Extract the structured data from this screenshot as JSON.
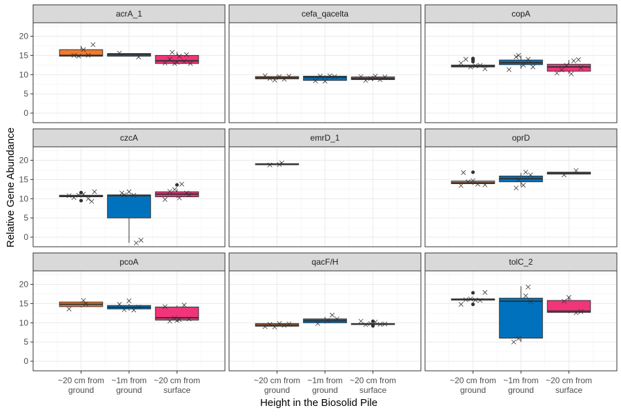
{
  "chart_data": {
    "type": "boxplot",
    "xlabel": "Height in the Biosolid Pile",
    "ylabel": "Relative Gene Abundance",
    "ylim": [
      -2.5,
      23.5
    ],
    "yticks": [
      0,
      5,
      10,
      15,
      20
    ],
    "grid": true,
    "legend": "none",
    "categories": [
      {
        "line1": "~20 cm from",
        "line2": "ground"
      },
      {
        "line1": "~1m from",
        "line2": "ground"
      },
      {
        "line1": "~20 cm from",
        "line2": "surface"
      }
    ],
    "colors": [
      "#F07A2E",
      "#0072BD",
      "#F0357A"
    ],
    "panels": [
      {
        "name": "acrA_1",
        "boxes": [
          {
            "q1": 14.8,
            "median": 15.0,
            "q3": 16.5,
            "lo": 14.8,
            "hi": 17.5,
            "outliers": [],
            "points": [
              [
                -0.15,
                15.0
              ],
              [
                0.05,
                16.5
              ],
              [
                0.15,
                15.0
              ],
              [
                0.25,
                17.8
              ],
              [
                -0.05,
                14.8
              ]
            ]
          },
          {
            "q1": 14.8,
            "median": 15.2,
            "q3": 15.5,
            "lo": 14.8,
            "hi": 15.5,
            "outliers": [],
            "points": [
              [
                -0.2,
                15.6
              ],
              [
                0.2,
                14.6
              ]
            ]
          },
          {
            "q1": 12.9,
            "median": 13.6,
            "q3": 15.0,
            "lo": 12.9,
            "hi": 15.9,
            "outliers": [],
            "points": [
              [
                -0.25,
                13.0
              ],
              [
                -0.15,
                14.0
              ],
              [
                -0.1,
                15.8
              ],
              [
                0.0,
                13.2
              ],
              [
                0.05,
                14.8
              ],
              [
                0.15,
                13.4
              ],
              [
                0.2,
                15.2
              ],
              [
                0.28,
                12.9
              ],
              [
                -0.05,
                12.9
              ]
            ]
          }
        ]
      },
      {
        "name": "cefa_qacelta",
        "boxes": [
          {
            "q1": 8.9,
            "median": 9.2,
            "q3": 9.5,
            "lo": 8.6,
            "hi": 9.8,
            "outliers": [],
            "points": [
              [
                -0.25,
                9.7
              ],
              [
                -0.15,
                9.0
              ],
              [
                -0.05,
                8.6
              ],
              [
                0.05,
                9.5
              ],
              [
                0.15,
                8.8
              ],
              [
                0.25,
                9.6
              ]
            ]
          },
          {
            "q1": 8.5,
            "median": 9.3,
            "q3": 9.6,
            "lo": 8.3,
            "hi": 9.8,
            "outliers": [],
            "points": [
              [
                -0.2,
                8.4
              ],
              [
                -0.1,
                9.6
              ],
              [
                0.0,
                8.3
              ],
              [
                0.1,
                9.7
              ],
              [
                0.2,
                9.5
              ]
            ]
          },
          {
            "q1": 8.7,
            "median": 9.0,
            "q3": 9.4,
            "lo": 8.4,
            "hi": 9.7,
            "outliers": [],
            "points": [
              [
                -0.25,
                9.5
              ],
              [
                -0.15,
                8.5
              ],
              [
                -0.05,
                9.0
              ],
              [
                0.05,
                9.6
              ],
              [
                0.15,
                8.7
              ],
              [
                0.25,
                9.4
              ]
            ]
          }
        ]
      },
      {
        "name": "copA",
        "boxes": [
          {
            "q1": 12.0,
            "median": 12.2,
            "q3": 12.5,
            "lo": 12.0,
            "hi": 12.5,
            "outliers": [
              13.4,
              13.9,
              14.2
            ],
            "points": [
              [
                -0.25,
                13.0
              ],
              [
                -0.15,
                14.0
              ],
              [
                -0.05,
                12.0
              ],
              [
                0.05,
                12.3
              ],
              [
                0.15,
                12.4
              ],
              [
                0.25,
                11.5
              ]
            ]
          },
          {
            "q1": 12.6,
            "median": 13.1,
            "q3": 13.8,
            "lo": 11.5,
            "hi": 15.0,
            "outliers": [],
            "points": [
              [
                -0.25,
                11.3
              ],
              [
                -0.1,
                14.6
              ],
              [
                -0.05,
                15.0
              ],
              [
                0.05,
                12.5
              ],
              [
                0.15,
                14.0
              ],
              [
                0.25,
                12.0
              ]
            ]
          },
          {
            "q1": 10.9,
            "median": 12.0,
            "q3": 12.7,
            "lo": 10.2,
            "hi": 13.8,
            "outliers": [],
            "points": [
              [
                -0.25,
                10.4
              ],
              [
                -0.15,
                11.2
              ],
              [
                -0.05,
                12.4
              ],
              [
                0.05,
                10.2
              ],
              [
                0.1,
                13.6
              ],
              [
                0.2,
                13.9
              ],
              [
                0.25,
                11.8
              ]
            ]
          }
        ]
      },
      {
        "name": "czcA",
        "boxes": [
          {
            "q1": 10.5,
            "median": 10.7,
            "q3": 10.9,
            "lo": 10.5,
            "hi": 10.9,
            "outliers": [
              9.5,
              11.6
            ],
            "points": [
              [
                -0.25,
                10.8
              ],
              [
                -0.15,
                10.3
              ],
              [
                -0.05,
                10.9
              ],
              [
                0.05,
                11.2
              ],
              [
                0.15,
                10.0
              ],
              [
                0.22,
                9.3
              ],
              [
                0.28,
                11.8
              ]
            ]
          },
          {
            "q1": 5.0,
            "median": 10.8,
            "q3": 11.0,
            "lo": -1.5,
            "hi": 11.0,
            "outliers": [],
            "points": [
              [
                -0.1,
                11.0
              ],
              [
                0.0,
                11.8
              ],
              [
                0.1,
                10.9
              ],
              [
                0.15,
                -1.5
              ],
              [
                0.25,
                -0.8
              ],
              [
                -0.15,
                11.5
              ]
            ]
          },
          {
            "q1": 10.5,
            "median": 11.2,
            "q3": 11.8,
            "lo": 10.2,
            "hi": 12.5,
            "outliers": [
              13.6
            ],
            "points": [
              [
                -0.25,
                9.8
              ],
              [
                -0.15,
                11.9
              ],
              [
                -0.05,
                12.4
              ],
              [
                0.05,
                10.2
              ],
              [
                0.1,
                13.8
              ],
              [
                0.2,
                11.5
              ],
              [
                0.25,
                11.0
              ]
            ]
          }
        ]
      },
      {
        "name": "emrD_1",
        "boxes": [
          {
            "q1": 18.9,
            "median": 19.0,
            "q3": 19.1,
            "lo": 18.9,
            "hi": 19.1,
            "outliers": [],
            "points": [
              [
                -0.15,
                18.8
              ],
              [
                0.1,
                19.3
              ],
              [
                0.05,
                18.9
              ]
            ]
          },
          null,
          null
        ]
      },
      {
        "name": "oprD",
        "boxes": [
          {
            "q1": 13.9,
            "median": 14.1,
            "q3": 14.6,
            "lo": 13.6,
            "hi": 14.8,
            "outliers": [
              16.9
            ],
            "points": [
              [
                -0.25,
                13.4
              ],
              [
                -0.2,
                16.8
              ],
              [
                -0.1,
                14.4
              ],
              [
                0.0,
                14.7
              ],
              [
                0.1,
                13.8
              ],
              [
                0.25,
                13.6
              ]
            ]
          },
          {
            "q1": 14.4,
            "median": 15.2,
            "q3": 15.9,
            "lo": 13.2,
            "hi": 16.7,
            "outliers": [],
            "points": [
              [
                -0.1,
                12.8
              ],
              [
                -0.05,
                14.9
              ],
              [
                0.05,
                13.5
              ],
              [
                0.1,
                16.9
              ],
              [
                0.2,
                16.2
              ]
            ]
          },
          {
            "q1": 16.4,
            "median": 16.7,
            "q3": 16.9,
            "lo": 16.4,
            "hi": 16.9,
            "outliers": [],
            "points": [
              [
                -0.1,
                16.2
              ],
              [
                0.15,
                17.3
              ]
            ]
          }
        ]
      },
      {
        "name": "pcoA",
        "boxes": [
          {
            "q1": 14.2,
            "median": 14.8,
            "q3": 15.4,
            "lo": 14.0,
            "hi": 15.5,
            "outliers": [],
            "points": [
              [
                -0.25,
                13.6
              ],
              [
                0.05,
                15.8
              ],
              [
                0.1,
                14.9
              ]
            ]
          },
          {
            "q1": 13.6,
            "median": 14.0,
            "q3": 14.5,
            "lo": 13.2,
            "hi": 14.9,
            "outliers": [],
            "points": [
              [
                -0.2,
                14.8
              ],
              [
                -0.1,
                13.4
              ],
              [
                0.0,
                15.7
              ],
              [
                0.1,
                13.3
              ],
              [
                0.2,
                14.1
              ]
            ]
          },
          {
            "q1": 10.7,
            "median": 11.3,
            "q3": 14.1,
            "lo": 10.3,
            "hi": 14.5,
            "outliers": [],
            "points": [
              [
                -0.25,
                14.2
              ],
              [
                -0.15,
                10.4
              ],
              [
                -0.05,
                11.2
              ],
              [
                0.05,
                10.8
              ],
              [
                0.15,
                14.6
              ],
              [
                0.25,
                11.0
              ],
              [
                0.0,
                10.6
              ]
            ]
          }
        ]
      },
      {
        "name": "qacF/H",
        "boxes": [
          {
            "q1": 9.1,
            "median": 9.4,
            "q3": 9.8,
            "lo": 8.9,
            "hi": 9.9,
            "outliers": [],
            "points": [
              [
                -0.25,
                9.0
              ],
              [
                -0.15,
                9.6
              ],
              [
                -0.05,
                8.9
              ],
              [
                0.05,
                9.8
              ],
              [
                0.15,
                9.3
              ],
              [
                0.25,
                9.7
              ]
            ]
          },
          {
            "q1": 10.0,
            "median": 10.5,
            "q3": 11.0,
            "lo": 9.8,
            "hi": 11.5,
            "outliers": [],
            "points": [
              [
                -0.15,
                9.8
              ],
              [
                0.05,
                10.6
              ],
              [
                0.15,
                12.0
              ],
              [
                0.25,
                11.0
              ]
            ]
          },
          {
            "q1": 9.6,
            "median": 9.7,
            "q3": 9.8,
            "lo": 9.4,
            "hi": 10.2,
            "outliers": [
              9.2,
              10.4
            ],
            "points": [
              [
                -0.25,
                10.4
              ],
              [
                -0.15,
                9.5
              ],
              [
                -0.05,
                9.8
              ],
              [
                0.05,
                10.2
              ],
              [
                0.15,
                9.6
              ],
              [
                0.25,
                9.7
              ]
            ]
          }
        ]
      },
      {
        "name": "tolC_2",
        "boxes": [
          {
            "q1": 15.9,
            "median": 16.1,
            "q3": 16.2,
            "lo": 15.9,
            "hi": 16.2,
            "outliers": [
              14.8,
              17.8
            ],
            "points": [
              [
                -0.25,
                14.8
              ],
              [
                -0.15,
                16.0
              ],
              [
                -0.05,
                16.2
              ],
              [
                0.05,
                15.9
              ],
              [
                0.15,
                15.8
              ],
              [
                0.25,
                17.9
              ]
            ]
          },
          {
            "q1": 6.0,
            "median": 15.6,
            "q3": 16.4,
            "lo": 5.0,
            "hi": 19.5,
            "outliers": [],
            "points": [
              [
                -0.15,
                5.0
              ],
              [
                -0.05,
                5.9
              ],
              [
                0.1,
                17.0
              ],
              [
                0.15,
                19.3
              ],
              [
                0.2,
                15.5
              ]
            ]
          },
          {
            "q1": 12.7,
            "median": 13.0,
            "q3": 15.8,
            "lo": 12.5,
            "hi": 16.5,
            "outliers": [],
            "points": [
              [
                -0.1,
                15.6
              ],
              [
                0.0,
                16.6
              ],
              [
                0.15,
                12.6
              ],
              [
                0.25,
                12.9
              ]
            ]
          }
        ]
      }
    ]
  }
}
